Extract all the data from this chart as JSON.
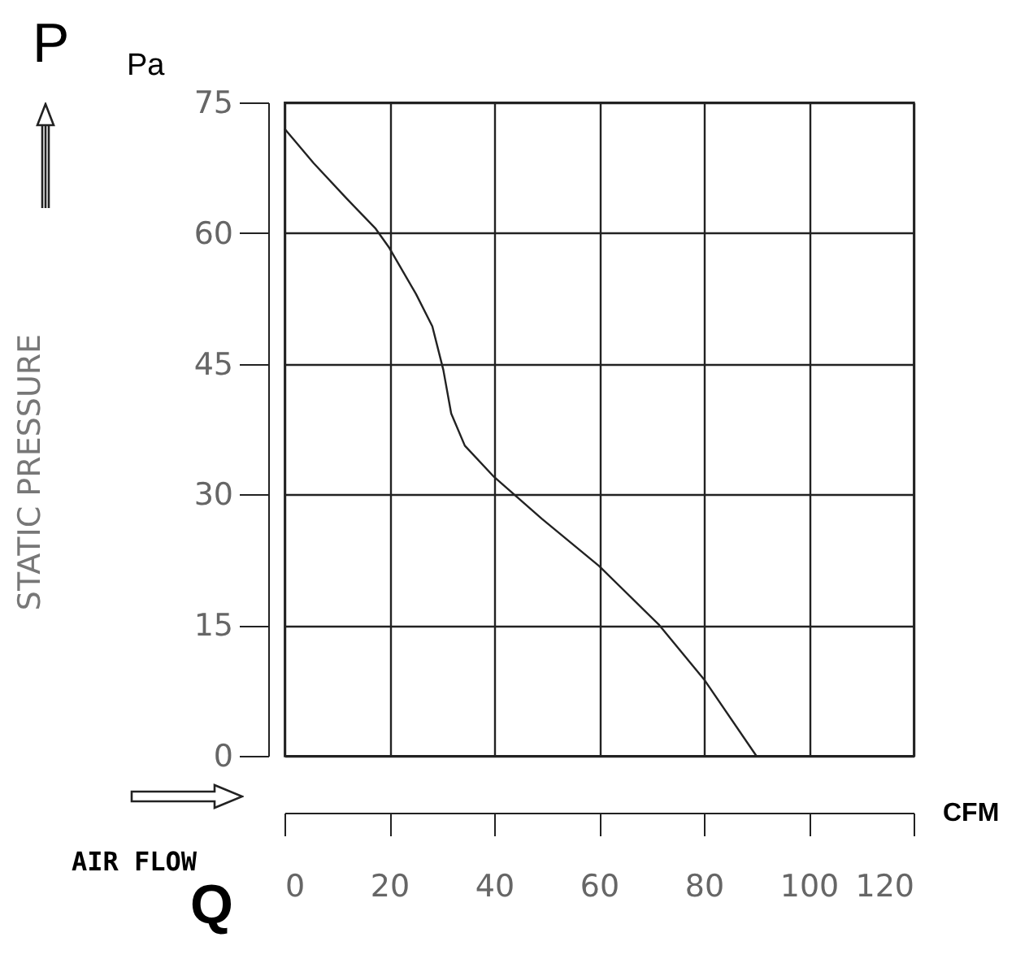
{
  "chart_data": {
    "type": "line",
    "xlabel": "AIR FLOW",
    "ylabel": "STATIC PRESSURE",
    "annotations": [
      "P",
      "Pa",
      "Q",
      "CFM"
    ],
    "x": [
      0,
      5.6,
      11.8,
      17.4,
      20,
      25.1,
      28.2,
      30.3,
      31.8,
      34.4,
      40,
      49.1,
      60,
      71.5,
      80,
      90
    ],
    "values": [
      72,
      68,
      64,
      60.5,
      58.3,
      53,
      49.3,
      44.3,
      39.3,
      35.6,
      32,
      27.2,
      21.8,
      15,
      8.8,
      0
    ],
    "color": "#222222",
    "xlim": [
      0,
      120
    ],
    "ylim": [
      0,
      75
    ],
    "xticks": [
      0,
      20,
      40,
      60,
      80,
      100,
      120
    ],
    "yticks": [
      0,
      15,
      30,
      45,
      60,
      75
    ],
    "grid": true
  }
}
